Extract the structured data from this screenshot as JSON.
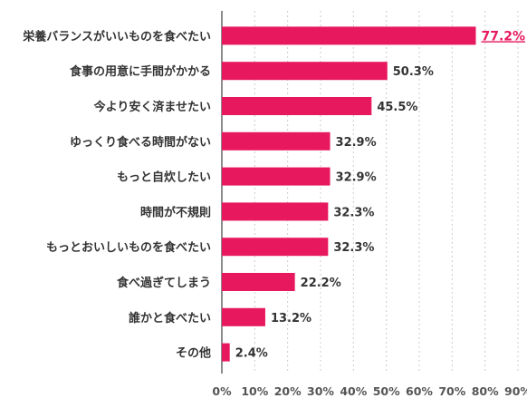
{
  "chart_data": {
    "type": "bar",
    "orientation": "horizontal",
    "categories": [
      "栄養バランスがいいものを食べたい",
      "食事の用意に手間がかかる",
      "今より安く済ませたい",
      "ゆっくり食べる時間がない",
      "もっと自炊したい",
      "時間が不規則",
      "もっとおいしいものを食べたい",
      "食べ過ぎてしまう",
      "誰かと食べたい",
      "その他"
    ],
    "values": [
      77.2,
      50.3,
      45.5,
      32.9,
      32.9,
      32.3,
      32.3,
      22.2,
      13.2,
      2.4
    ],
    "value_labels": [
      "77.2%",
      "50.3%",
      "45.5%",
      "32.9%",
      "32.9%",
      "32.3%",
      "32.3%",
      "22.2%",
      "13.2%",
      "2.4%"
    ],
    "xlim": [
      0,
      90
    ],
    "x_ticks": [
      0,
      10,
      20,
      30,
      40,
      50,
      60,
      70,
      80,
      90
    ],
    "x_tick_labels": [
      "0%",
      "10%",
      "20%",
      "30%",
      "40%",
      "50%",
      "60%",
      "70%",
      "80%",
      "90%"
    ],
    "grid": "vertical-dashed",
    "bar_color": "#e8185e",
    "highlight_color": "#e8185e",
    "highlight_index": 0
  }
}
